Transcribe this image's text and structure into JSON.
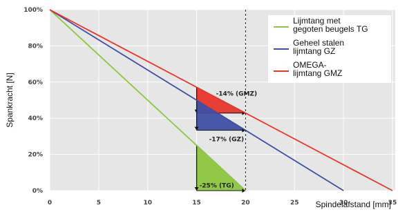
{
  "chart_data": {
    "type": "line",
    "xlabel": "Spindelafstand [mm]",
    "ylabel": "Spankracht [N]",
    "xlim": [
      0,
      35
    ],
    "ylim": [
      0,
      100
    ],
    "x_ticks": [
      "0",
      "5",
      "10",
      "15",
      "20",
      "25",
      "30",
      "35"
    ],
    "y_ticks": [
      "0%",
      "20%",
      "40%",
      "60%",
      "80%",
      "100%"
    ],
    "grid": true,
    "legend_position": "top-right",
    "series": [
      {
        "name": "Lijmtang met gegoten beugels TG",
        "legend_lines": [
          "Lijmtang met",
          "gegoten beugels TG"
        ],
        "color": "#8dc63f",
        "x": [
          0,
          20
        ],
        "y": [
          100,
          0
        ]
      },
      {
        "name": "Geheel stalen lijmtang GZ",
        "legend_lines": [
          "Geheel stalen",
          "lijmtang GZ"
        ],
        "color": "#3f4fa3",
        "x": [
          0,
          30
        ],
        "y": [
          100,
          0
        ]
      },
      {
        "name": "OMEGA-lijmtang GMZ",
        "legend_lines": [
          "OMEGA-",
          "lijmtang GMZ"
        ],
        "color": "#e8352b",
        "x": [
          0,
          35
        ],
        "y": [
          100,
          0
        ]
      }
    ],
    "reference_line": {
      "x": 20,
      "style": "dashed"
    },
    "annotations": [
      {
        "label": "-14% (GMZ)",
        "color": "#e8352b",
        "series": 2,
        "x_from": 15,
        "x_to": 20
      },
      {
        "label": "-17% (GZ)",
        "color": "#3f4fa3",
        "series": 1,
        "x_from": 15,
        "x_to": 20
      },
      {
        "label": "-25% (TG)",
        "color": "#8dc63f",
        "series": 0,
        "x_from": 15,
        "x_to": 20
      }
    ]
  }
}
